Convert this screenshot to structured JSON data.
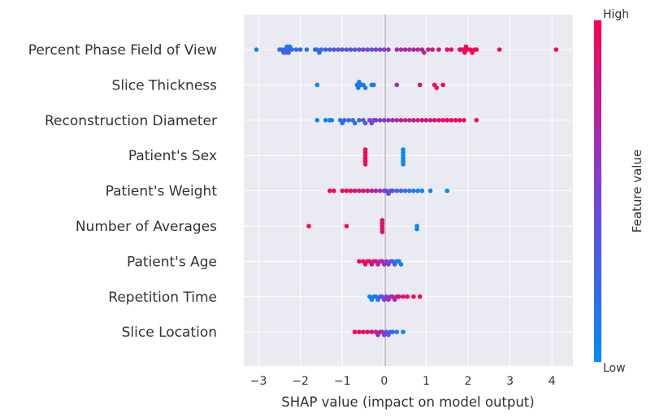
{
  "chart_data": {
    "type": "scatter",
    "subtype": "shap-beeswarm",
    "title": "",
    "xlabel": "SHAP value (impact on model output)",
    "ylabel": "",
    "xlim": [
      -3.35,
      4.5
    ],
    "xticks": [
      -3,
      -2,
      -1,
      0,
      1,
      2,
      3,
      4
    ],
    "xtick_labels": [
      "−3",
      "−2",
      "−1",
      "0",
      "1",
      "2",
      "3",
      "4"
    ],
    "grid": true,
    "colorbar": {
      "title": "Feature value",
      "high_label": "High",
      "low_label": "Low",
      "low_color": "#008afb",
      "high_color": "#ff0052"
    },
    "features": [
      {
        "name": "Percent Phase Field of View",
        "points": [
          [
            -3.05,
            0.0
          ],
          [
            -2.5,
            0.1
          ],
          [
            -2.45,
            0.2
          ],
          [
            -2.4,
            0.35
          ],
          [
            -2.38,
            0.25
          ],
          [
            -2.35,
            0.3
          ],
          [
            -2.32,
            0.15
          ],
          [
            -2.3,
            0.2
          ],
          [
            -2.28,
            0.3
          ],
          [
            -2.25,
            0.1
          ],
          [
            -2.2,
            0.2
          ],
          [
            -2.1,
            0.2
          ],
          [
            -2.0,
            0.2
          ],
          [
            -1.85,
            0.15
          ],
          [
            -1.65,
            0.15
          ],
          [
            -1.6,
            0.2
          ],
          [
            -1.55,
            0.25
          ],
          [
            -1.5,
            0.2
          ],
          [
            -1.4,
            0.3
          ],
          [
            -1.3,
            0.3
          ],
          [
            -1.2,
            0.3
          ],
          [
            -1.1,
            0.35
          ],
          [
            -1.0,
            0.35
          ],
          [
            -0.9,
            0.35
          ],
          [
            -0.8,
            0.4
          ],
          [
            -0.7,
            0.35
          ],
          [
            -0.6,
            0.4
          ],
          [
            -0.5,
            0.45
          ],
          [
            -0.4,
            0.45
          ],
          [
            -0.3,
            0.4
          ],
          [
            -0.2,
            0.45
          ],
          [
            -0.1,
            0.5
          ],
          [
            0.0,
            0.5
          ],
          [
            0.1,
            0.6
          ],
          [
            0.3,
            0.65
          ],
          [
            0.4,
            0.65
          ],
          [
            0.5,
            0.7
          ],
          [
            0.6,
            0.7
          ],
          [
            0.7,
            0.72
          ],
          [
            0.8,
            0.72
          ],
          [
            0.9,
            0.75
          ],
          [
            0.95,
            0.75
          ],
          [
            1.05,
            0.8
          ],
          [
            1.15,
            0.85
          ],
          [
            1.3,
            0.9
          ],
          [
            1.5,
            0.92
          ],
          [
            1.6,
            0.92
          ],
          [
            1.8,
            0.95
          ],
          [
            1.85,
            0.95
          ],
          [
            1.9,
            0.97
          ],
          [
            1.92,
            0.98
          ],
          [
            1.95,
            1.0
          ],
          [
            2.0,
            0.97
          ],
          [
            2.05,
            0.98
          ],
          [
            2.1,
            0.98
          ],
          [
            2.15,
            1.0
          ],
          [
            2.2,
            0.98
          ],
          [
            2.75,
            1.0
          ],
          [
            4.1,
            1.0
          ]
        ]
      },
      {
        "name": "Slice Thickness",
        "points": [
          [
            -1.6,
            0.0
          ],
          [
            -0.65,
            0.1
          ],
          [
            -0.62,
            0.15
          ],
          [
            -0.6,
            0.1
          ],
          [
            -0.55,
            0.15
          ],
          [
            -0.5,
            0.1
          ],
          [
            -0.45,
            0.1
          ],
          [
            -0.3,
            0.1
          ],
          [
            -0.25,
            0.15
          ],
          [
            0.3,
            0.6
          ],
          [
            0.85,
            0.9
          ],
          [
            1.2,
            1.0
          ],
          [
            1.25,
            0.95
          ],
          [
            1.4,
            0.95
          ]
        ]
      },
      {
        "name": "Reconstruction Diameter",
        "points": [
          [
            -1.6,
            0.0
          ],
          [
            -1.4,
            0.05
          ],
          [
            -1.3,
            0.05
          ],
          [
            -1.25,
            0.05
          ],
          [
            -1.05,
            0.1
          ],
          [
            -1.0,
            0.15
          ],
          [
            -0.95,
            0.2
          ],
          [
            -0.85,
            0.2
          ],
          [
            -0.75,
            0.2
          ],
          [
            -0.7,
            0.2
          ],
          [
            -0.6,
            0.25
          ],
          [
            -0.5,
            0.3
          ],
          [
            -0.45,
            0.35
          ],
          [
            -0.35,
            0.4
          ],
          [
            -0.3,
            0.45
          ],
          [
            -0.25,
            0.5
          ],
          [
            -0.2,
            0.55
          ],
          [
            -0.1,
            0.5
          ],
          [
            0.0,
            0.55
          ],
          [
            0.1,
            0.6
          ],
          [
            0.2,
            0.65
          ],
          [
            0.3,
            0.7
          ],
          [
            0.4,
            0.7
          ],
          [
            0.5,
            0.75
          ],
          [
            0.6,
            0.78
          ],
          [
            0.7,
            0.8
          ],
          [
            0.8,
            0.8
          ],
          [
            0.9,
            0.82
          ],
          [
            1.0,
            0.85
          ],
          [
            1.1,
            0.85
          ],
          [
            1.2,
            0.88
          ],
          [
            1.3,
            0.9
          ],
          [
            1.4,
            0.92
          ],
          [
            1.5,
            0.95
          ],
          [
            1.6,
            0.95
          ],
          [
            1.7,
            0.97
          ],
          [
            1.8,
            0.98
          ],
          [
            1.9,
            0.98
          ],
          [
            2.2,
            1.0
          ]
        ]
      },
      {
        "name": "Patient's Sex",
        "points": [
          [
            -0.45,
            1.0
          ],
          [
            -0.45,
            1.0
          ],
          [
            -0.45,
            1.0
          ],
          [
            -0.45,
            1.0
          ],
          [
            -0.45,
            1.0
          ],
          [
            -0.45,
            1.0
          ],
          [
            0.45,
            0.0
          ],
          [
            0.45,
            0.0
          ],
          [
            0.45,
            0.0
          ],
          [
            0.45,
            0.0
          ],
          [
            0.45,
            0.0
          ],
          [
            0.45,
            0.0
          ]
        ]
      },
      {
        "name": "Patient's Weight",
        "points": [
          [
            -1.3,
            1.0
          ],
          [
            -1.2,
            0.95
          ],
          [
            -1.0,
            0.95
          ],
          [
            -0.9,
            0.9
          ],
          [
            -0.8,
            0.9
          ],
          [
            -0.7,
            0.88
          ],
          [
            -0.6,
            0.85
          ],
          [
            -0.5,
            0.85
          ],
          [
            -0.4,
            0.8
          ],
          [
            -0.3,
            0.75
          ],
          [
            -0.2,
            0.7
          ],
          [
            -0.1,
            0.65
          ],
          [
            0.0,
            0.55
          ],
          [
            0.05,
            0.5
          ],
          [
            0.1,
            0.45
          ],
          [
            0.15,
            0.4
          ],
          [
            0.2,
            0.35
          ],
          [
            0.3,
            0.3
          ],
          [
            0.4,
            0.25
          ],
          [
            0.5,
            0.2
          ],
          [
            0.6,
            0.15
          ],
          [
            0.7,
            0.12
          ],
          [
            0.8,
            0.1
          ],
          [
            0.9,
            0.05
          ],
          [
            1.1,
            0.05
          ],
          [
            1.5,
            0.0
          ]
        ]
      },
      {
        "name": "Number of Averages",
        "points": [
          [
            -1.8,
            1.0
          ],
          [
            -0.9,
            1.0
          ],
          [
            -0.05,
            0.9
          ],
          [
            -0.05,
            0.9
          ],
          [
            -0.05,
            0.9
          ],
          [
            -0.05,
            0.9
          ],
          [
            -0.05,
            0.9
          ],
          [
            0.78,
            0.0
          ],
          [
            0.78,
            0.0
          ]
        ]
      },
      {
        "name": "Patient's Age",
        "points": [
          [
            -0.6,
            1.0
          ],
          [
            -0.5,
            0.95
          ],
          [
            -0.45,
            0.9
          ],
          [
            -0.4,
            0.92
          ],
          [
            -0.35,
            0.9
          ],
          [
            -0.3,
            0.88
          ],
          [
            -0.25,
            0.85
          ],
          [
            -0.2,
            0.82
          ],
          [
            -0.15,
            0.8
          ],
          [
            -0.1,
            0.75
          ],
          [
            -0.05,
            0.7
          ],
          [
            0.0,
            0.6
          ],
          [
            0.05,
            0.55
          ],
          [
            0.1,
            0.5
          ],
          [
            0.15,
            0.4
          ],
          [
            0.2,
            0.35
          ],
          [
            0.25,
            0.3
          ],
          [
            0.3,
            0.2
          ],
          [
            0.35,
            0.1
          ],
          [
            0.4,
            0.05
          ]
        ]
      },
      {
        "name": "Repetition Time",
        "points": [
          [
            -0.35,
            0.0
          ],
          [
            -0.3,
            0.05
          ],
          [
            -0.25,
            0.1
          ],
          [
            -0.2,
            0.15
          ],
          [
            -0.15,
            0.2
          ],
          [
            -0.1,
            0.3
          ],
          [
            -0.05,
            0.4
          ],
          [
            0.0,
            0.5
          ],
          [
            0.05,
            0.55
          ],
          [
            0.1,
            0.6
          ],
          [
            0.15,
            0.65
          ],
          [
            0.2,
            0.7
          ],
          [
            0.25,
            0.75
          ],
          [
            0.3,
            0.8
          ],
          [
            0.35,
            0.85
          ],
          [
            0.45,
            0.9
          ],
          [
            0.55,
            0.95
          ],
          [
            0.7,
            1.0
          ],
          [
            0.85,
            1.0
          ]
        ]
      },
      {
        "name": "Slice Location",
        "points": [
          [
            -0.7,
            1.0
          ],
          [
            -0.6,
            0.95
          ],
          [
            -0.5,
            0.95
          ],
          [
            -0.4,
            0.9
          ],
          [
            -0.3,
            0.85
          ],
          [
            -0.2,
            0.8
          ],
          [
            -0.15,
            0.75
          ],
          [
            -0.1,
            0.7
          ],
          [
            -0.05,
            0.6
          ],
          [
            0.0,
            0.5
          ],
          [
            0.05,
            0.4
          ],
          [
            0.1,
            0.35
          ],
          [
            0.15,
            0.3
          ],
          [
            0.2,
            0.2
          ],
          [
            0.3,
            0.15
          ],
          [
            0.45,
            0.0
          ]
        ]
      }
    ]
  }
}
